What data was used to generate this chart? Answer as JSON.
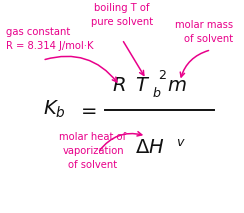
{
  "bg_color": "#ffffff",
  "pink_color": "#e8008a",
  "black_color": "#111111",
  "label_gas_constant": "gas constant\nR = 8.314 J/mol·K",
  "label_boiling_T": "boiling T of\npure solvent",
  "label_molar_mass": "molar mass\nof solvent",
  "label_molar_heat": "molar heat of\nvaporization\nof solvent",
  "formula_fontsize": 14,
  "label_fontsize": 7.2,
  "fig_width": 2.44,
  "fig_height": 2.13,
  "dpi": 100
}
